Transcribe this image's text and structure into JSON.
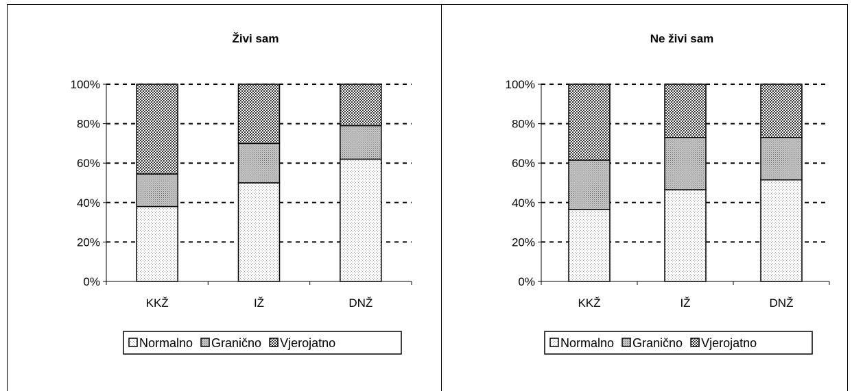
{
  "chart_data": [
    {
      "type": "bar",
      "stacked": true,
      "title": "Živi sam",
      "categories": [
        "KKŽ",
        "IŽ",
        "DNŽ"
      ],
      "series": [
        {
          "name": "Normalno",
          "values": [
            38,
            50,
            62
          ]
        },
        {
          "name": "Granično",
          "values": [
            16.5,
            20,
            17
          ]
        },
        {
          "name": "Vjerojatno",
          "values": [
            45.5,
            30,
            21
          ]
        }
      ],
      "ylim": [
        0,
        100
      ],
      "yticks": [
        "0%",
        "20%",
        "40%",
        "60%",
        "80%",
        "100%"
      ],
      "grid": true,
      "legend": "bottom"
    },
    {
      "type": "bar",
      "stacked": true,
      "title": "Ne živi sam",
      "categories": [
        "KKŽ",
        "IŽ",
        "DNŽ"
      ],
      "series": [
        {
          "name": "Normalno",
          "values": [
            36.5,
            46.5,
            51.5
          ]
        },
        {
          "name": "Granično",
          "values": [
            25,
            26.5,
            21.5
          ]
        },
        {
          "name": "Vjerojatno",
          "values": [
            38.5,
            27,
            27
          ]
        }
      ],
      "ylim": [
        0,
        100
      ],
      "yticks": [
        "0%",
        "20%",
        "40%",
        "60%",
        "80%",
        "100%"
      ],
      "grid": true,
      "legend": "bottom"
    }
  ]
}
